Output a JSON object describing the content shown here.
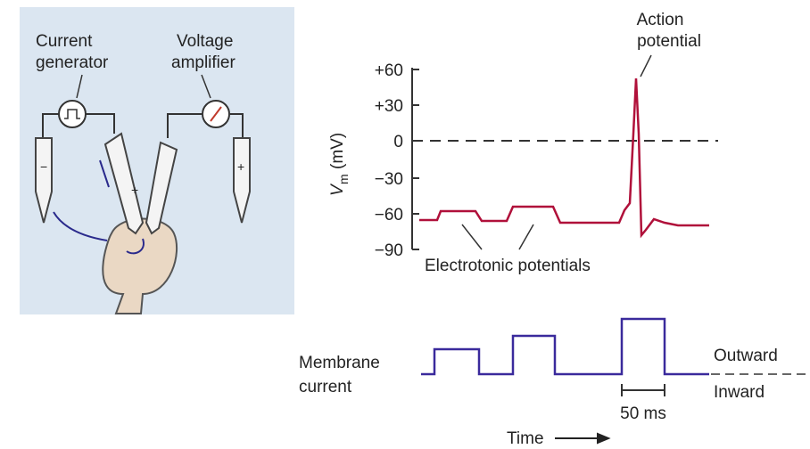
{
  "setup": {
    "current_generator": [
      "Current",
      "generator"
    ],
    "voltage_amplifier": [
      "Voltage",
      "amplifier"
    ],
    "electrode_signs": [
      "+",
      "−",
      "+"
    ]
  },
  "voltage_trace": {
    "annotation": [
      "Action",
      "potential"
    ],
    "axis_label": {
      "symbol": "V",
      "subscript": "m",
      "unit": "(mV)"
    },
    "ticks": [
      "+60",
      "+30",
      "0",
      "−30",
      "−60",
      "−90"
    ],
    "caption": "Electrotonic potentials"
  },
  "current_trace": {
    "label": [
      "Membrane",
      "current"
    ],
    "outward": "Outward",
    "inward": "Inward",
    "scale_bar": "50 ms",
    "time": "Time"
  }
}
